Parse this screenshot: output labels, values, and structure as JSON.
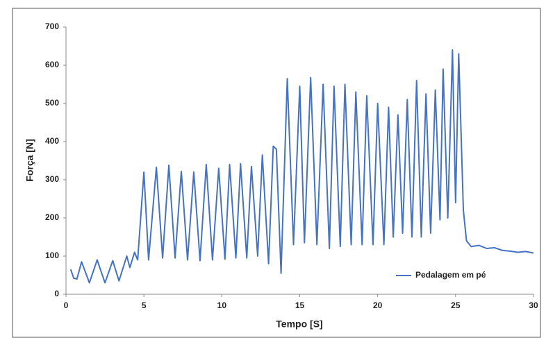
{
  "chart_data": {
    "type": "line",
    "x_label": "Tempo [S]",
    "y_label": "Força [N]",
    "x": [
      0.3,
      0.5,
      0.7,
      1.0,
      1.5,
      2.0,
      2.5,
      3.0,
      3.4,
      3.9,
      4.1,
      4.4,
      4.6,
      5.0,
      5.3,
      5.8,
      6.2,
      6.6,
      7.0,
      7.4,
      7.8,
      8.2,
      8.6,
      9.0,
      9.4,
      9.8,
      10.2,
      10.5,
      10.9,
      11.2,
      11.6,
      11.9,
      12.3,
      12.6,
      13.0,
      13.3,
      13.5,
      13.8,
      14.2,
      14.6,
      15.0,
      15.3,
      15.7,
      16.1,
      16.5,
      16.9,
      17.2,
      17.6,
      17.9,
      18.3,
      18.6,
      19.0,
      19.3,
      19.7,
      20.0,
      20.4,
      20.7,
      21.0,
      21.3,
      21.6,
      21.9,
      22.2,
      22.5,
      22.8,
      23.1,
      23.4,
      23.7,
      24.0,
      24.2,
      24.5,
      24.8,
      25.0,
      25.2,
      25.5,
      25.7,
      26.0,
      26.5,
      27.0,
      27.5,
      28.0,
      28.5,
      29.0,
      29.5,
      30.0
    ],
    "series": [
      {
        "name": "Pedalagem em pé",
        "color": "#4472c4",
        "values": [
          65,
          42,
          40,
          85,
          30,
          90,
          30,
          88,
          35,
          100,
          70,
          110,
          90,
          320,
          90,
          333,
          95,
          338,
          95,
          322,
          90,
          320,
          88,
          340,
          90,
          330,
          92,
          340,
          95,
          342,
          95,
          335,
          100,
          365,
          80,
          388,
          380,
          55,
          565,
          130,
          545,
          135,
          568,
          130,
          550,
          120,
          545,
          125,
          550,
          130,
          530,
          130,
          520,
          130,
          500,
          130,
          490,
          150,
          470,
          160,
          510,
          150,
          560,
          150,
          525,
          160,
          535,
          195,
          590,
          200,
          640,
          240,
          630,
          220,
          140,
          125,
          128,
          120,
          122,
          115,
          113,
          110,
          112,
          108
        ]
      }
    ],
    "xlim": [
      0,
      30
    ],
    "xticks": [
      0,
      5,
      10,
      15,
      20,
      25,
      30
    ],
    "ylim": [
      0,
      700
    ],
    "yticks": [
      0,
      100,
      200,
      300,
      400,
      500,
      600,
      700
    ],
    "legend": "lower right"
  }
}
